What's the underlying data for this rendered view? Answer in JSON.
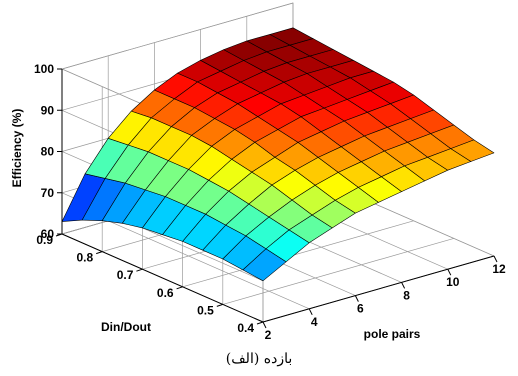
{
  "chart_data": {
    "type": "surface",
    "zlabel": "Efficiency (%)",
    "xlabel": "pole pairs",
    "ylabel": "Din/Dout",
    "x_ticks": [
      "2",
      "4",
      "6",
      "8",
      "10",
      "12"
    ],
    "y_ticks": [
      "0.4",
      "0.5",
      "0.6",
      "0.7",
      "0.8",
      "0.9"
    ],
    "z_ticks": [
      "60",
      "70",
      "80",
      "90",
      "100"
    ],
    "xlim": [
      2,
      12
    ],
    "ylim": [
      0.4,
      0.9
    ],
    "zlim": [
      60,
      100
    ],
    "colormap": "jet",
    "grid": true,
    "box": true,
    "x": [
      2,
      3,
      4,
      5,
      6,
      7,
      8,
      9,
      10,
      11,
      12
    ],
    "y": [
      0.4,
      0.45,
      0.5,
      0.55,
      0.6,
      0.65,
      0.7,
      0.75,
      0.8,
      0.85,
      0.9
    ],
    "z_note_rows_y_cols_x": "z[i][j] = efficiency at y[i], x[j]",
    "z": [
      [
        70,
        73,
        76,
        78,
        80,
        81,
        82,
        83,
        84,
        84.5,
        85
      ],
      [
        70.5,
        74,
        77,
        79,
        81,
        82.5,
        83.5,
        84.5,
        85,
        85.5,
        86
      ],
      [
        71,
        75,
        78,
        80.5,
        82.5,
        84,
        85,
        86,
        86.5,
        87,
        87.5
      ],
      [
        71,
        75.5,
        79,
        82,
        84,
        85.5,
        86.5,
        87.5,
        88,
        88.5,
        89
      ],
      [
        71,
        76,
        80,
        83,
        85,
        87,
        88,
        89,
        89.5,
        90,
        90.5
      ],
      [
        70.5,
        76,
        80.5,
        84,
        86.5,
        88,
        89.5,
        90,
        90.5,
        91,
        91.5
      ],
      [
        70,
        76,
        81,
        85,
        87.5,
        89,
        90.5,
        91,
        91.5,
        92,
        92
      ],
      [
        69,
        75.5,
        81,
        85.5,
        88,
        90,
        91,
        92,
        92.5,
        92.5,
        92.5
      ],
      [
        67.5,
        75,
        81,
        85.5,
        88.5,
        90.5,
        91.5,
        92.5,
        93,
        93,
        93
      ],
      [
        65.5,
        74,
        80.5,
        85.5,
        88.5,
        91,
        92,
        93,
        93.5,
        93.5,
        93.5
      ],
      [
        63,
        73,
        80,
        85,
        88.5,
        91,
        92.5,
        93.5,
        94,
        94,
        94
      ]
    ]
  },
  "caption": "(الف) بازده"
}
